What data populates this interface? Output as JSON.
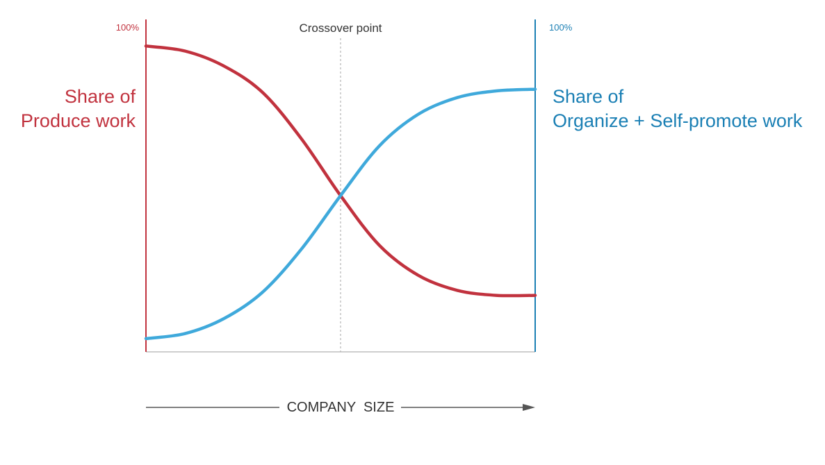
{
  "colors": {
    "produce": "#c1323e",
    "organize": "#3fa9db",
    "organize_text": "#1a7fb4",
    "axis": "#bdbdbd",
    "crossover_line": "#b5b5b5",
    "text_dark": "#333333",
    "arrow": "#555555"
  },
  "left_label": {
    "line1": "Share of",
    "line2": "Produce work"
  },
  "right_label": {
    "line1": "Share of",
    "line2": "Organize + Self-promote work"
  },
  "chart_data": {
    "type": "line",
    "title": "",
    "xlabel": "COMPANY  SIZE",
    "xlim": [
      0,
      1
    ],
    "ylim": [
      0,
      100
    ],
    "y_left_max_label": "100%",
    "y_right_max_label": "100%",
    "annotations": [
      {
        "text": "Crossover point",
        "x": 0.5
      }
    ],
    "series": [
      {
        "name": "Share of Produce work",
        "color": "#c1323e",
        "x": [
          0,
          0.1,
          0.2,
          0.3,
          0.4,
          0.5,
          0.6,
          0.7,
          0.8,
          0.9,
          1.0
        ],
        "y": [
          92,
          90.5,
          86,
          78,
          64,
          47,
          32,
          23,
          18.5,
          17,
          17
        ]
      },
      {
        "name": "Share of Organize + Self-promote work",
        "color": "#3fa9db",
        "x": [
          0,
          0.1,
          0.2,
          0.3,
          0.4,
          0.5,
          0.6,
          0.7,
          0.8,
          0.9,
          1.0
        ],
        "y": [
          4,
          5.5,
          10,
          18,
          31,
          47,
          62,
          71.5,
          76.5,
          78.5,
          79
        ]
      }
    ]
  }
}
